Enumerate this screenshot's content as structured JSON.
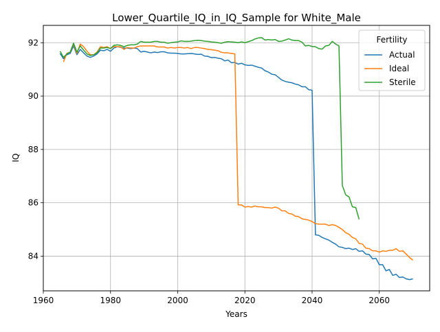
{
  "chart_data": {
    "type": "line",
    "title": "Lower_Quartile_IQ_in_IQ_Sample for White_Male",
    "xlabel": "Years",
    "ylabel": "IQ",
    "xlim": [
      1960,
      2075
    ],
    "ylim": [
      82.7,
      92.65
    ],
    "grid": true,
    "x_ticks": [
      1960,
      1980,
      2000,
      2020,
      2040,
      2060
    ],
    "y_ticks": [
      84,
      86,
      88,
      90,
      92
    ],
    "legend": {
      "title": "Fertility",
      "placement": "top-right"
    },
    "series": [
      {
        "name": "Actual",
        "color": "#1f77b4",
        "points": [
          [
            1965,
            91.6
          ],
          [
            1966,
            91.4
          ],
          [
            1967,
            91.55
          ],
          [
            1968,
            91.6
          ],
          [
            1969,
            91.88
          ],
          [
            1970,
            91.55
          ],
          [
            1971,
            91.75
          ],
          [
            1972,
            91.62
          ],
          [
            1973,
            91.5
          ],
          [
            1974,
            91.45
          ],
          [
            1975,
            91.5
          ],
          [
            1976,
            91.58
          ],
          [
            1977,
            91.72
          ],
          [
            1978,
            91.7
          ],
          [
            1979,
            91.75
          ],
          [
            1980,
            91.68
          ],
          [
            1981,
            91.8
          ],
          [
            1982,
            91.85
          ],
          [
            1983,
            91.83
          ],
          [
            1984,
            91.8
          ],
          [
            1985,
            91.8
          ],
          [
            1986,
            91.78
          ],
          [
            1987,
            91.8
          ],
          [
            1988,
            91.78
          ],
          [
            1989,
            91.65
          ],
          [
            1990,
            91.68
          ],
          [
            1991,
            91.65
          ],
          [
            1992,
            91.62
          ],
          [
            1993,
            91.65
          ],
          [
            1994,
            91.63
          ],
          [
            1995,
            91.66
          ],
          [
            1996,
            91.66
          ],
          [
            1997,
            91.62
          ],
          [
            1998,
            91.61
          ],
          [
            1999,
            91.61
          ],
          [
            2000,
            91.6
          ],
          [
            2001,
            91.58
          ],
          [
            2002,
            91.58
          ],
          [
            2003,
            91.59
          ],
          [
            2004,
            91.6
          ],
          [
            2005,
            91.58
          ],
          [
            2006,
            91.56
          ],
          [
            2007,
            91.57
          ],
          [
            2008,
            91.5
          ],
          [
            2009,
            91.49
          ],
          [
            2010,
            91.44
          ],
          [
            2011,
            91.45
          ],
          [
            2012,
            91.42
          ],
          [
            2013,
            91.4
          ],
          [
            2014,
            91.32
          ],
          [
            2015,
            91.35
          ],
          [
            2016,
            91.25
          ],
          [
            2017,
            91.26
          ],
          [
            2018,
            91.2
          ],
          [
            2019,
            91.23
          ],
          [
            2020,
            91.17
          ],
          [
            2021,
            91.15
          ],
          [
            2022,
            91.16
          ],
          [
            2023,
            91.12
          ],
          [
            2024,
            91.08
          ],
          [
            2025,
            91.05
          ],
          [
            2026,
            90.95
          ],
          [
            2027,
            90.9
          ],
          [
            2028,
            90.82
          ],
          [
            2029,
            90.8
          ],
          [
            2030,
            90.7
          ],
          [
            2031,
            90.6
          ],
          [
            2032,
            90.55
          ],
          [
            2033,
            90.52
          ],
          [
            2034,
            90.5
          ],
          [
            2035,
            90.45
          ],
          [
            2036,
            90.42
          ],
          [
            2037,
            90.35
          ],
          [
            2038,
            90.35
          ],
          [
            2039,
            90.24
          ],
          [
            2040,
            90.22
          ],
          [
            2041,
            84.8
          ],
          [
            2042,
            84.78
          ],
          [
            2043,
            84.7
          ],
          [
            2044,
            84.65
          ],
          [
            2045,
            84.6
          ],
          [
            2046,
            84.52
          ],
          [
            2047,
            84.45
          ],
          [
            2048,
            84.35
          ],
          [
            2049,
            84.33
          ],
          [
            2050,
            84.28
          ],
          [
            2051,
            84.3
          ],
          [
            2052,
            84.25
          ],
          [
            2053,
            84.28
          ],
          [
            2054,
            84.18
          ],
          [
            2055,
            84.2
          ],
          [
            2056,
            84.08
          ],
          [
            2057,
            84.06
          ],
          [
            2058,
            83.9
          ],
          [
            2059,
            83.92
          ],
          [
            2060,
            83.68
          ],
          [
            2061,
            83.68
          ],
          [
            2062,
            83.45
          ],
          [
            2063,
            83.5
          ],
          [
            2064,
            83.28
          ],
          [
            2065,
            83.32
          ],
          [
            2066,
            83.2
          ],
          [
            2067,
            83.22
          ],
          [
            2068,
            83.15
          ],
          [
            2069,
            83.12
          ],
          [
            2070,
            83.15
          ]
        ]
      },
      {
        "name": "Ideal",
        "color": "#ff7f0e",
        "points": [
          [
            1966,
            91.28
          ],
          [
            1967,
            91.6
          ],
          [
            1968,
            91.65
          ],
          [
            1969,
            91.95
          ],
          [
            1970,
            91.6
          ],
          [
            1971,
            91.95
          ],
          [
            1972,
            91.85
          ],
          [
            1973,
            91.68
          ],
          [
            1974,
            91.55
          ],
          [
            1975,
            91.55
          ],
          [
            1976,
            91.65
          ],
          [
            1977,
            91.85
          ],
          [
            1978,
            91.82
          ],
          [
            1979,
            91.85
          ],
          [
            1980,
            91.78
          ],
          [
            1981,
            91.86
          ],
          [
            1982,
            91.85
          ],
          [
            1983,
            91.85
          ],
          [
            1984,
            91.75
          ],
          [
            1985,
            91.82
          ],
          [
            1986,
            91.8
          ],
          [
            1987,
            91.8
          ],
          [
            1988,
            91.85
          ],
          [
            1989,
            91.88
          ],
          [
            1990,
            91.88
          ],
          [
            1991,
            91.88
          ],
          [
            1992,
            91.88
          ],
          [
            1993,
            91.88
          ],
          [
            1994,
            91.84
          ],
          [
            1995,
            91.84
          ],
          [
            1996,
            91.84
          ],
          [
            1997,
            91.8
          ],
          [
            1998,
            91.82
          ],
          [
            1999,
            91.8
          ],
          [
            2000,
            91.82
          ],
          [
            2001,
            91.82
          ],
          [
            2002,
            91.8
          ],
          [
            2003,
            91.82
          ],
          [
            2004,
            91.78
          ],
          [
            2005,
            91.82
          ],
          [
            2006,
            91.82
          ],
          [
            2007,
            91.8
          ],
          [
            2008,
            91.78
          ],
          [
            2009,
            91.75
          ],
          [
            2010,
            91.74
          ],
          [
            2011,
            91.72
          ],
          [
            2012,
            91.7
          ],
          [
            2013,
            91.64
          ],
          [
            2014,
            91.62
          ],
          [
            2015,
            91.62
          ],
          [
            2016,
            91.6
          ],
          [
            2017,
            91.58
          ],
          [
            2018,
            85.92
          ],
          [
            2019,
            85.92
          ],
          [
            2020,
            85.84
          ],
          [
            2021,
            85.86
          ],
          [
            2022,
            85.84
          ],
          [
            2023,
            85.88
          ],
          [
            2024,
            85.85
          ],
          [
            2025,
            85.85
          ],
          [
            2026,
            85.82
          ],
          [
            2027,
            85.82
          ],
          [
            2028,
            85.8
          ],
          [
            2029,
            85.84
          ],
          [
            2030,
            85.8
          ],
          [
            2031,
            85.7
          ],
          [
            2032,
            85.7
          ],
          [
            2033,
            85.6
          ],
          [
            2034,
            85.58
          ],
          [
            2035,
            85.5
          ],
          [
            2036,
            85.48
          ],
          [
            2037,
            85.4
          ],
          [
            2038,
            85.38
          ],
          [
            2039,
            85.35
          ],
          [
            2040,
            85.3
          ],
          [
            2041,
            85.22
          ],
          [
            2042,
            85.2
          ],
          [
            2043,
            85.2
          ],
          [
            2044,
            85.2
          ],
          [
            2045,
            85.15
          ],
          [
            2046,
            85.18
          ],
          [
            2047,
            85.15
          ],
          [
            2048,
            85.08
          ],
          [
            2049,
            85.0
          ],
          [
            2050,
            84.88
          ],
          [
            2051,
            84.82
          ],
          [
            2052,
            84.7
          ],
          [
            2053,
            84.65
          ],
          [
            2054,
            84.48
          ],
          [
            2055,
            84.45
          ],
          [
            2056,
            84.3
          ],
          [
            2057,
            84.28
          ],
          [
            2058,
            84.2
          ],
          [
            2059,
            84.2
          ],
          [
            2060,
            84.15
          ],
          [
            2061,
            84.2
          ],
          [
            2062,
            84.18
          ],
          [
            2063,
            84.22
          ],
          [
            2064,
            84.22
          ],
          [
            2065,
            84.28
          ],
          [
            2066,
            84.18
          ],
          [
            2067,
            84.2
          ],
          [
            2068,
            84.08
          ],
          [
            2069,
            83.95
          ],
          [
            2070,
            83.85
          ]
        ]
      },
      {
        "name": "Sterile",
        "color": "#2ca02c",
        "points": [
          [
            1965,
            91.68
          ],
          [
            1966,
            91.45
          ],
          [
            1967,
            91.58
          ],
          [
            1968,
            91.65
          ],
          [
            1969,
            91.98
          ],
          [
            1970,
            91.65
          ],
          [
            1971,
            91.88
          ],
          [
            1972,
            91.72
          ],
          [
            1973,
            91.58
          ],
          [
            1974,
            91.52
          ],
          [
            1975,
            91.55
          ],
          [
            1976,
            91.62
          ],
          [
            1977,
            91.8
          ],
          [
            1978,
            91.8
          ],
          [
            1979,
            91.82
          ],
          [
            1980,
            91.78
          ],
          [
            1981,
            91.9
          ],
          [
            1982,
            91.92
          ],
          [
            1983,
            91.9
          ],
          [
            1984,
            91.85
          ],
          [
            1985,
            91.9
          ],
          [
            1986,
            91.92
          ],
          [
            1987,
            91.92
          ],
          [
            1988,
            91.95
          ],
          [
            1989,
            92.05
          ],
          [
            1990,
            92.02
          ],
          [
            1991,
            92.02
          ],
          [
            1992,
            92.02
          ],
          [
            1993,
            92.05
          ],
          [
            1994,
            92.05
          ],
          [
            1995,
            92.02
          ],
          [
            1996,
            92.02
          ],
          [
            1997,
            91.98
          ],
          [
            1998,
            92.0
          ],
          [
            1999,
            92.02
          ],
          [
            2000,
            92.03
          ],
          [
            2001,
            92.07
          ],
          [
            2002,
            92.05
          ],
          [
            2003,
            92.05
          ],
          [
            2004,
            92.06
          ],
          [
            2005,
            92.08
          ],
          [
            2006,
            92.09
          ],
          [
            2007,
            92.08
          ],
          [
            2008,
            92.06
          ],
          [
            2009,
            92.05
          ],
          [
            2010,
            92.03
          ],
          [
            2011,
            92.02
          ],
          [
            2012,
            92.0
          ],
          [
            2013,
            91.98
          ],
          [
            2014,
            92.02
          ],
          [
            2015,
            92.04
          ],
          [
            2016,
            92.03
          ],
          [
            2017,
            92.02
          ],
          [
            2018,
            92.0
          ],
          [
            2019,
            92.03
          ],
          [
            2020,
            92.0
          ],
          [
            2021,
            92.04
          ],
          [
            2022,
            92.08
          ],
          [
            2023,
            92.14
          ],
          [
            2024,
            92.18
          ],
          [
            2025,
            92.19
          ],
          [
            2026,
            92.1
          ],
          [
            2027,
            92.12
          ],
          [
            2028,
            92.1
          ],
          [
            2029,
            92.12
          ],
          [
            2030,
            92.05
          ],
          [
            2031,
            92.06
          ],
          [
            2032,
            92.1
          ],
          [
            2033,
            92.15
          ],
          [
            2034,
            92.1
          ],
          [
            2035,
            92.08
          ],
          [
            2036,
            92.08
          ],
          [
            2037,
            92.02
          ],
          [
            2038,
            91.88
          ],
          [
            2039,
            91.9
          ],
          [
            2040,
            91.86
          ],
          [
            2041,
            91.85
          ],
          [
            2042,
            91.78
          ],
          [
            2043,
            91.76
          ],
          [
            2044,
            91.88
          ],
          [
            2045,
            91.9
          ],
          [
            2046,
            92.05
          ],
          [
            2047,
            91.95
          ],
          [
            2048,
            91.88
          ],
          [
            2049,
            86.65
          ],
          [
            2050,
            86.3
          ],
          [
            2051,
            86.22
          ],
          [
            2052,
            85.85
          ],
          [
            2053,
            85.82
          ],
          [
            2054,
            85.38
          ]
        ]
      }
    ]
  }
}
